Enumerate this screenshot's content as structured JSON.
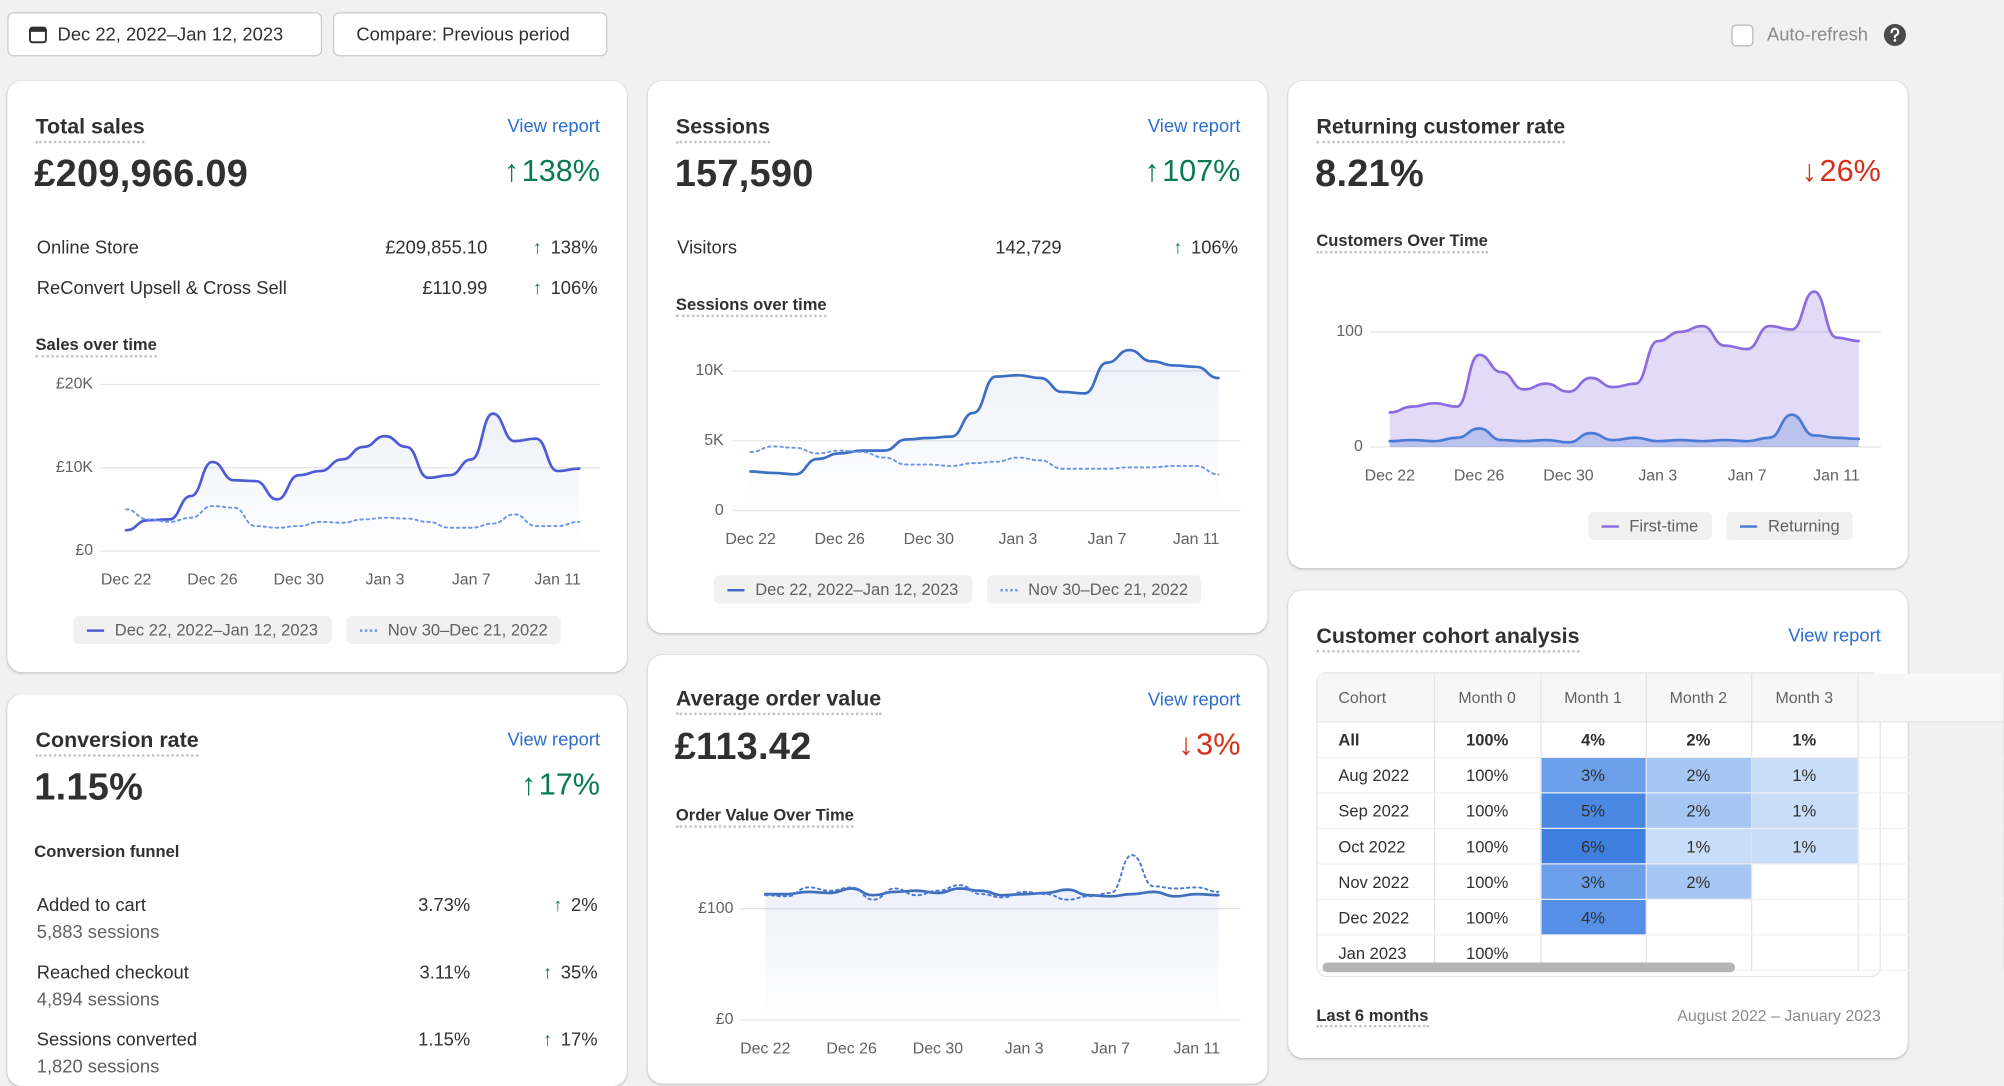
{
  "toolbar": {
    "date_range": "Dec 22, 2022–Jan 12, 2023",
    "compare": "Compare: Previous period",
    "auto_refresh": "Auto-refresh"
  },
  "total_sales": {
    "title": "Total sales",
    "link": "View report",
    "value": "£209,966.09",
    "change": {
      "direction": "up",
      "text": "138%"
    },
    "breakdown": [
      {
        "label": "Online Store",
        "value": "£209,855.10",
        "change": {
          "direction": "up",
          "text": "138%"
        }
      },
      {
        "label": "ReConvert Upsell & Cross Sell",
        "value": "£110.99",
        "change": {
          "direction": "up",
          "text": "106%"
        }
      }
    ],
    "chart": {
      "type": "line",
      "title": "Sales over time",
      "categories": [
        "Dec 22",
        null,
        null,
        null,
        "Dec 26",
        null,
        null,
        null,
        "Dec 30",
        null,
        null,
        null,
        "Jan 3",
        null,
        null,
        null,
        "Jan 7",
        null,
        null,
        null,
        "Jan 11",
        null
      ],
      "ylim": [
        0,
        20000
      ],
      "yticks": [
        {
          "value": 0,
          "label": "£0"
        },
        {
          "value": 10000,
          "label": "£10K"
        },
        {
          "value": 20000,
          "label": "£20K"
        }
      ],
      "series": [
        {
          "name": "Dec 22, 2022–Jan 12, 2023",
          "color": "#4f5bd5",
          "style": "solid",
          "values": [
            2500,
            3700,
            3800,
            6600,
            10700,
            8500,
            8400,
            6200,
            9100,
            9600,
            11000,
            12500,
            13800,
            12500,
            8800,
            9100,
            11000,
            16500,
            13200,
            13500,
            9600,
            9900
          ]
        },
        {
          "name": "Nov 30–Dec 21, 2022",
          "color": "#6f95e6",
          "style": "dotted",
          "values": [
            5000,
            3800,
            3500,
            4000,
            5400,
            5200,
            3000,
            2800,
            3000,
            3500,
            3400,
            3800,
            4000,
            3900,
            3500,
            2800,
            2800,
            3300,
            4400,
            3000,
            3000,
            3500
          ]
        }
      ]
    }
  },
  "sessions": {
    "title": "Sessions",
    "link": "View report",
    "value": "157,590",
    "change": {
      "direction": "up",
      "text": "107%"
    },
    "breakdown": [
      {
        "label": "Visitors",
        "value": "142,729",
        "change": {
          "direction": "up",
          "text": "106%"
        }
      }
    ],
    "chart": {
      "type": "line",
      "title": "Sessions over time",
      "categories": [
        "Dec 22",
        null,
        null,
        null,
        "Dec 26",
        null,
        null,
        null,
        "Dec 30",
        null,
        null,
        null,
        "Jan 3",
        null,
        null,
        null,
        "Jan 7",
        null,
        null,
        null,
        "Jan 11",
        null
      ],
      "ylim": [
        0,
        12000
      ],
      "yticks": [
        0,
        {
          "value": 5000,
          "label": "5K"
        },
        {
          "value": 10000,
          "label": "10K"
        }
      ],
      "series": [
        {
          "name": "Dec 22, 2022–Jan 12, 2023",
          "color": "#3c6fc4",
          "style": "solid",
          "values": [
            2800,
            2700,
            2600,
            3700,
            4100,
            4300,
            4300,
            5100,
            5200,
            5300,
            7000,
            9600,
            9700,
            9500,
            8500,
            8400,
            10600,
            11500,
            10700,
            10400,
            10300,
            9500
          ]
        },
        {
          "name": "Nov 30–Dec 21, 2022",
          "color": "#6f95e6",
          "style": "dotted",
          "values": [
            4200,
            4600,
            4500,
            4100,
            4300,
            4200,
            3800,
            3300,
            3300,
            3200,
            3400,
            3500,
            3800,
            3600,
            3000,
            3000,
            3000,
            3100,
            3100,
            3200,
            3200,
            2600
          ]
        }
      ]
    }
  },
  "returning": {
    "title": "Returning customer rate",
    "value": "8.21%",
    "change": {
      "direction": "down",
      "text": "26%"
    },
    "chart": {
      "type": "area",
      "title": "Customers Over Time",
      "categories": [
        "Dec 22",
        null,
        null,
        null,
        "Dec 26",
        null,
        null,
        null,
        "Dec 30",
        null,
        null,
        null,
        "Jan 3",
        null,
        null,
        null,
        "Jan 7",
        null,
        null,
        null,
        "Jan 11",
        null
      ],
      "ylim": [
        0,
        150
      ],
      "yticks": [
        0,
        100
      ],
      "series": [
        {
          "name": "First-time",
          "color": "#8c6be0",
          "style": "solid",
          "values": [
            30,
            35,
            38,
            35,
            80,
            65,
            50,
            55,
            48,
            60,
            52,
            55,
            92,
            100,
            105,
            88,
            85,
            105,
            102,
            135,
            95,
            92
          ]
        },
        {
          "name": "Returning",
          "color": "#4a7bd4",
          "style": "solid",
          "values": [
            5,
            6,
            5,
            8,
            16,
            6,
            5,
            6,
            4,
            12,
            6,
            8,
            5,
            6,
            5,
            6,
            5,
            8,
            28,
            10,
            8,
            7
          ]
        }
      ]
    }
  },
  "conversion": {
    "title": "Conversion rate",
    "link": "View report",
    "value": "1.15%",
    "change": {
      "direction": "up",
      "text": "17%"
    },
    "funnel_title": "Conversion funnel",
    "funnel": [
      {
        "label": "Added to cart",
        "sessions": "5,883 sessions",
        "rate": "3.73%",
        "change": {
          "direction": "up",
          "text": "2%"
        }
      },
      {
        "label": "Reached checkout",
        "sessions": "4,894 sessions",
        "rate": "3.11%",
        "change": {
          "direction": "up",
          "text": "35%"
        }
      },
      {
        "label": "Sessions converted",
        "sessions": "1,820 sessions",
        "rate": "1.15%",
        "change": {
          "direction": "up",
          "text": "17%"
        }
      }
    ]
  },
  "aov": {
    "title": "Average order value",
    "link": "View report",
    "value": "£113.42",
    "change": {
      "direction": "down",
      "text": "3%"
    },
    "chart": {
      "type": "line",
      "title": "Order Value Over Time",
      "categories": [
        "Dec 22",
        null,
        null,
        null,
        "Dec 26",
        null,
        null,
        null,
        "Dec 30",
        null,
        null,
        null,
        "Jan 3",
        null,
        null,
        null,
        "Jan 7",
        null,
        null,
        null,
        "Jan 11",
        null
      ],
      "ylim": [
        0,
        160
      ],
      "yticks": [
        {
          "value": 0,
          "label": "£0"
        },
        {
          "value": 100,
          "label": "£100"
        }
      ],
      "series": [
        {
          "name": "Dec 22, 2022–Jan 12, 2023",
          "color": "#3f6fba",
          "style": "solid",
          "values": [
            113,
            113,
            115,
            114,
            118,
            112,
            115,
            116,
            114,
            118,
            116,
            112,
            113,
            114,
            117,
            112,
            111,
            113,
            115,
            111,
            113,
            112
          ]
        },
        {
          "name": "Nov 30–Dec 21, 2022",
          "color": "#4b79d8",
          "style": "dotted",
          "values": [
            112,
            111,
            119,
            116,
            119,
            108,
            118,
            112,
            116,
            121,
            113,
            110,
            115,
            113,
            108,
            111,
            114,
            148,
            120,
            118,
            119,
            115
          ]
        }
      ]
    }
  },
  "cohort": {
    "title": "Customer cohort analysis",
    "link": "View report",
    "columns": [
      "Cohort",
      "Month 0",
      "Month 1",
      "Month 2",
      "Month 3"
    ],
    "rows": [
      [
        "All",
        "100%",
        "4%",
        "2%",
        "1%"
      ],
      [
        "Aug 2022",
        "100%",
        "3%",
        "2%",
        "1%"
      ],
      [
        "Sep 2022",
        "100%",
        "5%",
        "2%",
        "1%"
      ],
      [
        "Oct 2022",
        "100%",
        "6%",
        "1%",
        "1%"
      ],
      [
        "Nov 2022",
        "100%",
        "3%",
        "2%",
        null
      ],
      [
        "Dec 2022",
        "100%",
        "4%",
        null,
        null
      ],
      [
        "Jan 2023",
        "100%",
        null,
        null,
        null
      ]
    ],
    "period": "Last 6 months",
    "range": "August 2022 – January 2023"
  }
}
